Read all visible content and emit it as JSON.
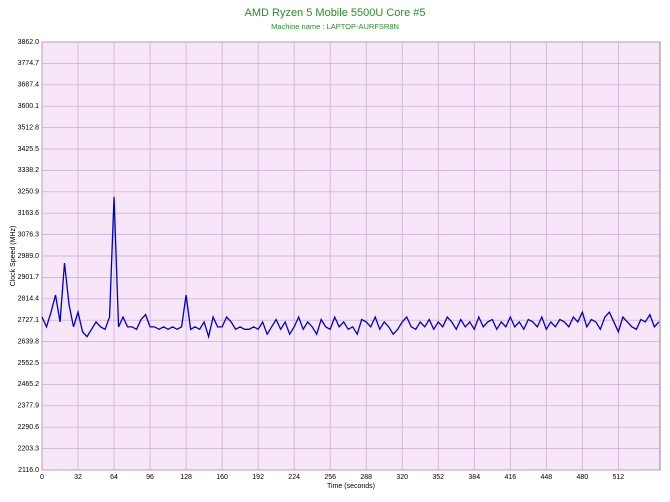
{
  "chart_data": {
    "type": "line",
    "title": "AMD Ryzen 5 Mobile 5500U Core #5",
    "subtitle": "Machine name : LAPTOP-AURFSR8N",
    "xlabel": "Time (seconds)",
    "ylabel": "Clock Speed (MHz)",
    "xlim": [
      0,
      549
    ],
    "xticks": [
      0,
      32,
      64,
      96,
      128,
      160,
      192,
      224,
      256,
      288,
      320,
      352,
      384,
      416,
      448,
      480,
      512
    ],
    "ylim": [
      2116,
      3862
    ],
    "yticks": [
      {
        "value": 2116,
        "label": "2116.0"
      },
      2203.3,
      2290.6,
      2377.9,
      2465.2,
      2552.5,
      2639.8,
      2727.1,
      2814.4,
      2901.7,
      {
        "value": 2989,
        "label": "2989.0"
      },
      3076.3,
      3163.6,
      3250.9,
      3338.2,
      3425.5,
      3512.8,
      3600.1,
      3687.4,
      3774.7,
      {
        "value": 3862,
        "label": "3862.0"
      }
    ],
    "grid": true,
    "series": [
      {
        "name": "Core #5",
        "color": "#0000c0",
        "x": [
          0,
          4,
          8,
          12,
          16,
          20,
          24,
          28,
          32,
          36,
          40,
          44,
          48,
          52,
          56,
          60,
          64,
          68,
          72,
          76,
          80,
          84,
          88,
          92,
          96,
          100,
          104,
          108,
          112,
          116,
          120,
          124,
          128,
          132,
          136,
          140,
          144,
          148,
          152,
          156,
          160,
          164,
          168,
          172,
          176,
          180,
          184,
          188,
          192,
          196,
          200,
          204,
          208,
          212,
          216,
          220,
          224,
          228,
          232,
          236,
          240,
          244,
          248,
          252,
          256,
          260,
          264,
          268,
          272,
          276,
          280,
          284,
          288,
          292,
          296,
          300,
          304,
          308,
          312,
          316,
          320,
          324,
          328,
          332,
          336,
          340,
          344,
          348,
          352,
          356,
          360,
          364,
          368,
          372,
          376,
          380,
          384,
          388,
          392,
          396,
          400,
          404,
          408,
          412,
          416,
          420,
          424,
          428,
          432,
          436,
          440,
          444,
          448,
          452,
          456,
          460,
          464,
          468,
          472,
          476,
          480,
          484,
          488,
          492,
          496,
          500,
          504,
          508,
          512,
          516,
          520,
          524,
          528,
          532,
          536,
          540,
          544,
          548
        ],
        "values": [
          2740,
          2700,
          2760,
          2830,
          2720,
          2960,
          2790,
          2700,
          2760,
          2680,
          2660,
          2690,
          2720,
          2700,
          2690,
          2740,
          3230,
          2700,
          2740,
          2700,
          2700,
          2690,
          2730,
          2750,
          2700,
          2700,
          2690,
          2700,
          2690,
          2700,
          2690,
          2700,
          2830,
          2690,
          2700,
          2690,
          2720,
          2660,
          2740,
          2700,
          2700,
          2740,
          2720,
          2690,
          2700,
          2690,
          2690,
          2700,
          2690,
          2720,
          2670,
          2700,
          2730,
          2690,
          2720,
          2670,
          2700,
          2740,
          2690,
          2720,
          2700,
          2670,
          2730,
          2700,
          2690,
          2740,
          2700,
          2720,
          2690,
          2700,
          2670,
          2730,
          2720,
          2700,
          2740,
          2690,
          2720,
          2700,
          2670,
          2690,
          2720,
          2740,
          2700,
          2690,
          2720,
          2700,
          2730,
          2690,
          2720,
          2700,
          2740,
          2720,
          2690,
          2730,
          2700,
          2720,
          2690,
          2740,
          2700,
          2720,
          2730,
          2690,
          2720,
          2700,
          2740,
          2700,
          2720,
          2690,
          2730,
          2720,
          2700,
          2740,
          2690,
          2720,
          2700,
          2730,
          2720,
          2700,
          2740,
          2720,
          2760,
          2700,
          2730,
          2720,
          2690,
          2740,
          2760,
          2720,
          2680,
          2740,
          2720,
          2700,
          2690,
          2730,
          2720,
          2750,
          2700,
          2720
        ]
      }
    ]
  }
}
